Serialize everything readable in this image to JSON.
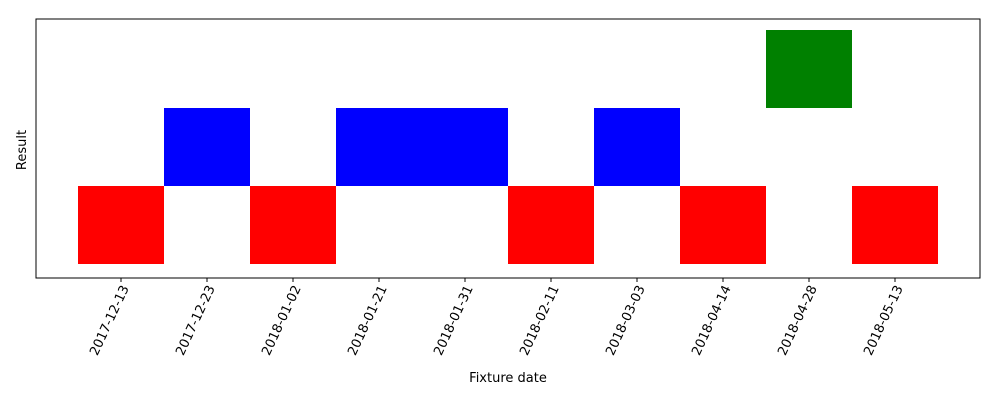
{
  "chart_data": {
    "type": "bar",
    "xlabel": "Fixture date",
    "ylabel": "Result",
    "categories": [
      "2017-12-13",
      "2017-12-23",
      "2018-01-02",
      "2018-01-21",
      "2018-01-31",
      "2018-02-11",
      "2018-03-03",
      "2018-04-14",
      "2018-04-28",
      "2018-05-13"
    ],
    "values": [
      1,
      2,
      1,
      2,
      2,
      1,
      2,
      1,
      3,
      1
    ],
    "result_colors": {
      "1": "#ff0000",
      "2": "#0000ff",
      "3": "#008000"
    },
    "ylim": [
      0,
      3.15
    ],
    "yticks_shown": false,
    "grid": false
  }
}
